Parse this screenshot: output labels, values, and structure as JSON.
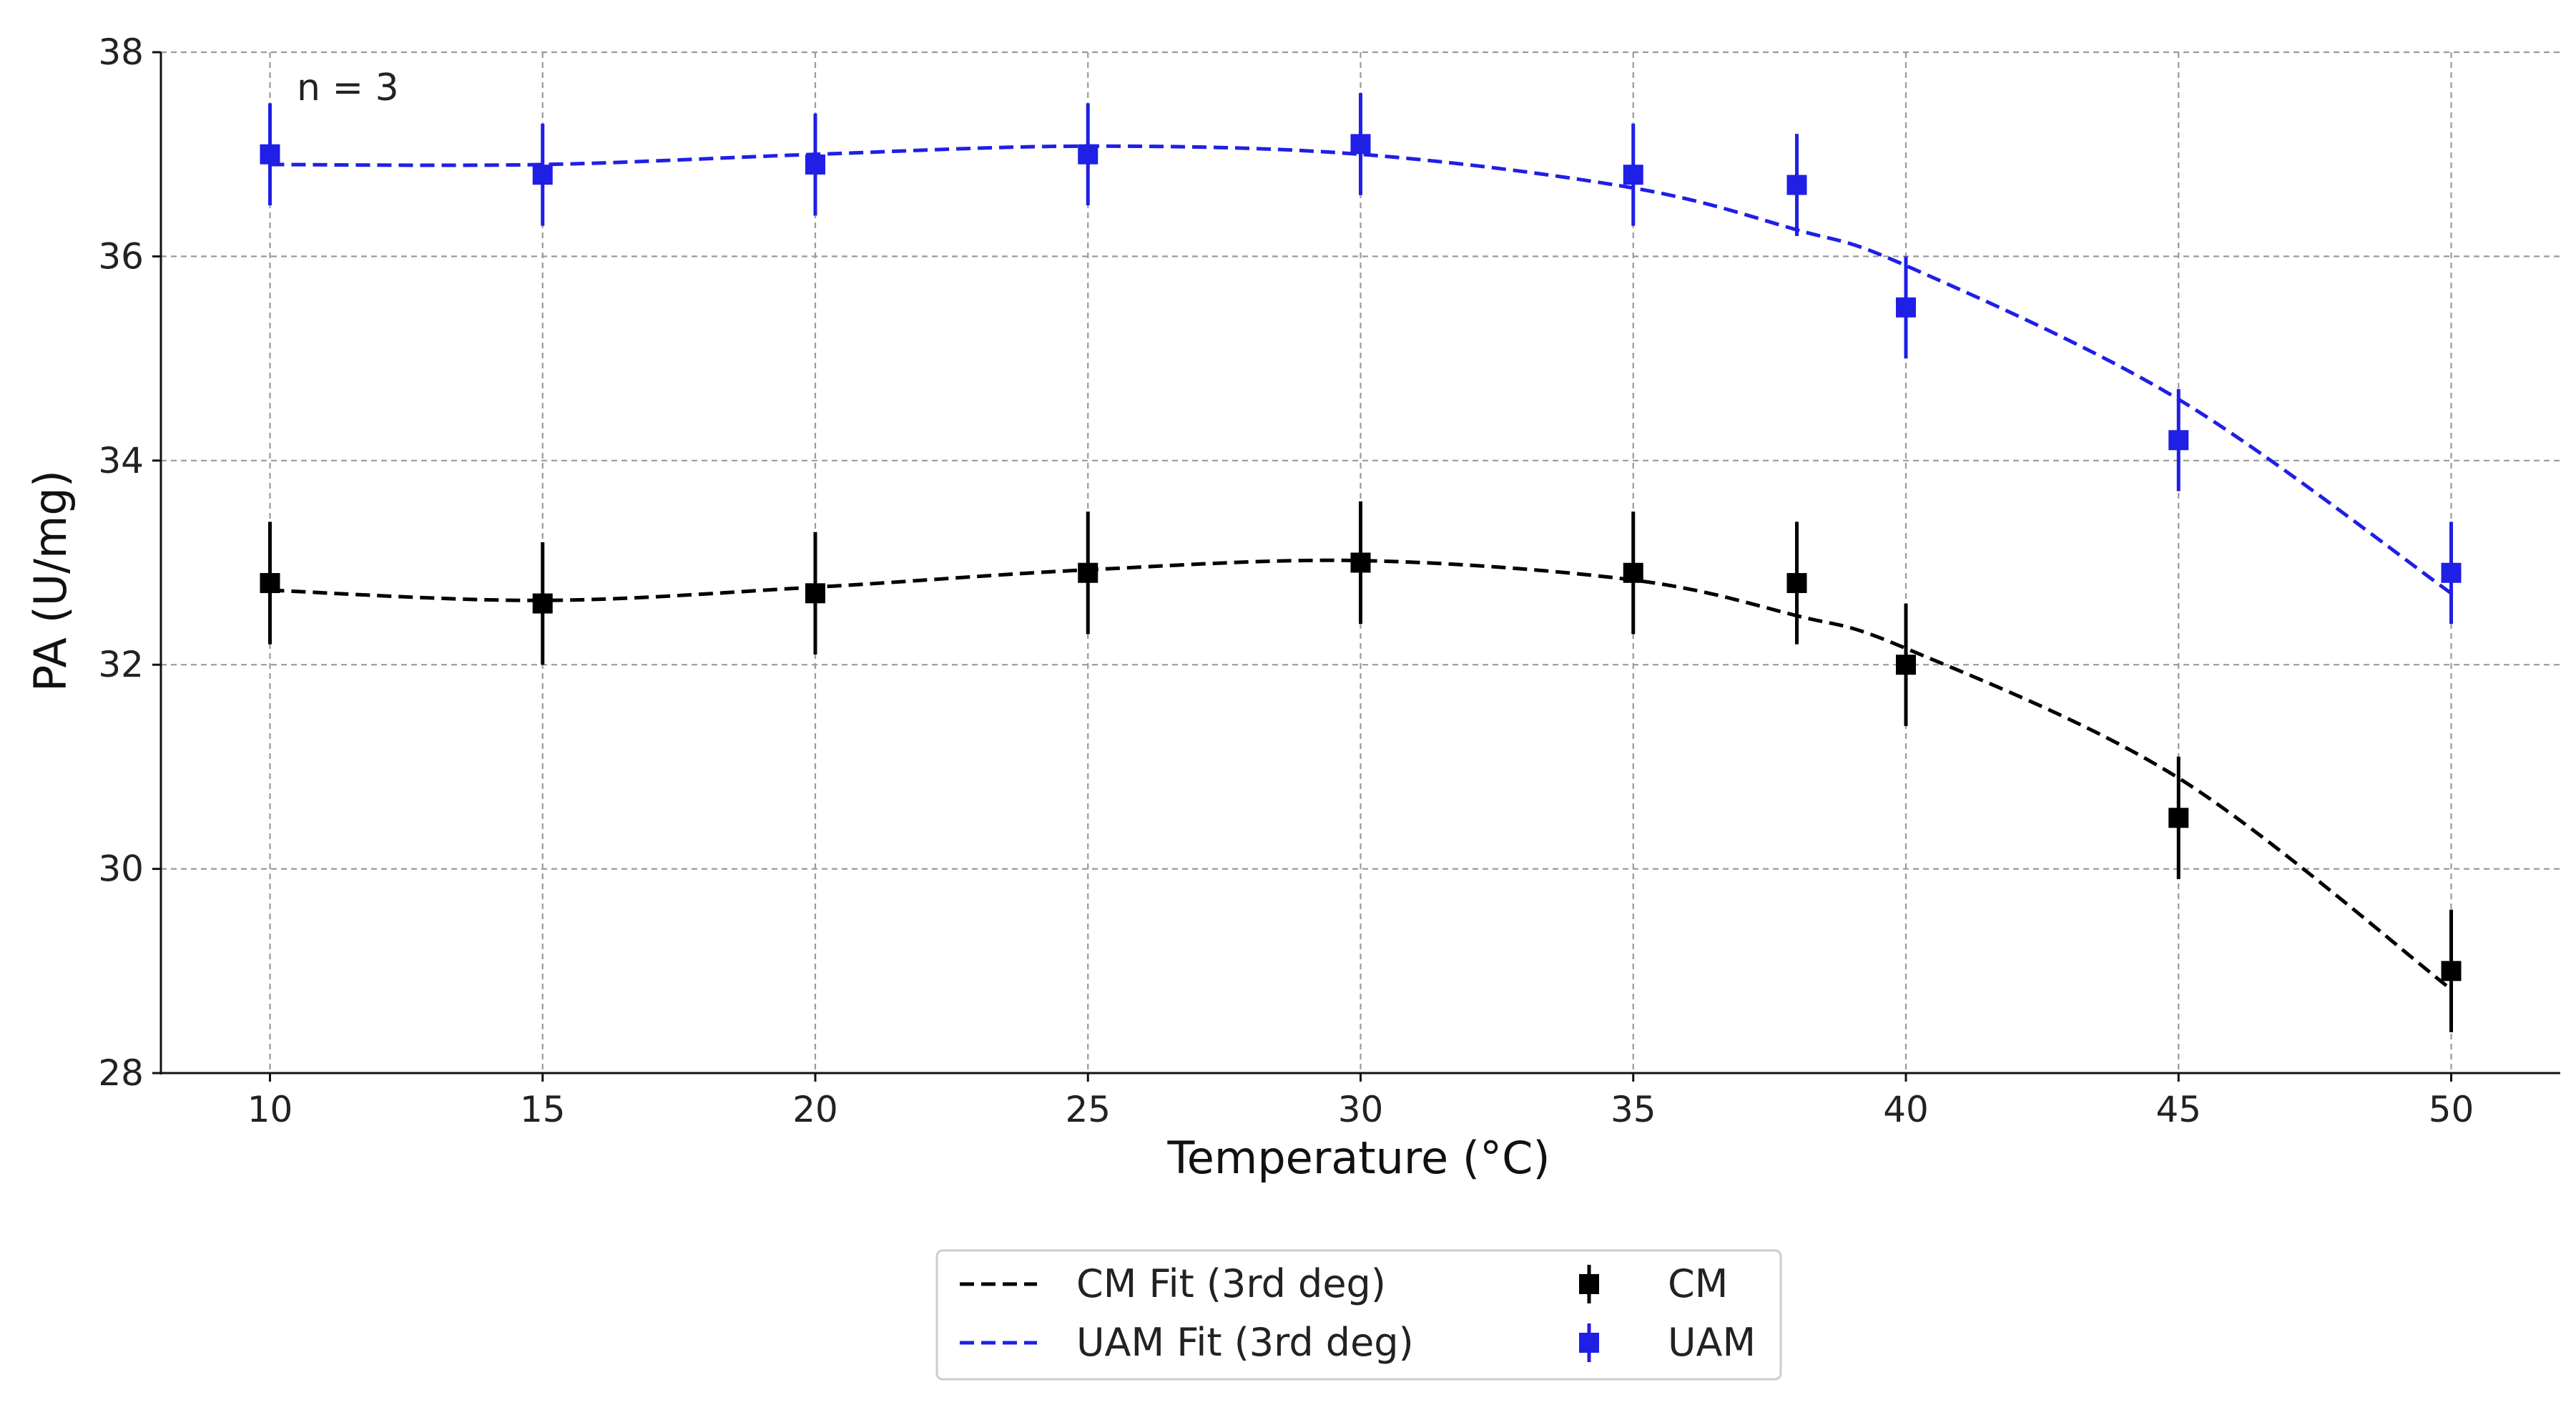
{
  "chart_data": {
    "type": "line",
    "title": "",
    "xlabel": "Temperature (°C)",
    "ylabel": "PA (U/mg)",
    "xlim": [
      8,
      52
    ],
    "ylim": [
      28,
      38
    ],
    "x_ticks": [
      10,
      15,
      20,
      25,
      30,
      35,
      40,
      45,
      50
    ],
    "y_ticks": [
      28,
      30,
      32,
      34,
      36,
      38
    ],
    "grid": true,
    "legend_position": "bottom-center",
    "annotation": "n = 3",
    "x": [
      10,
      15,
      20,
      25,
      30,
      35,
      38,
      40,
      45,
      50
    ],
    "series": [
      {
        "name": "CM",
        "color": "#000000",
        "values": [
          32.8,
          32.6,
          32.7,
          32.9,
          33.0,
          32.9,
          32.8,
          32.0,
          30.5,
          29.0
        ],
        "errors": [
          0.6,
          0.6,
          0.6,
          0.6,
          0.6,
          0.6,
          0.6,
          0.6,
          0.6,
          0.6
        ],
        "fit_name": "CM Fit (3rd deg)",
        "fit_values": [
          32.73,
          32.63,
          32.76,
          32.93,
          33.02,
          32.83,
          32.48,
          32.16,
          30.89,
          28.82
        ]
      },
      {
        "name": "UAM",
        "color": "#1f1fe6",
        "values": [
          37.0,
          36.8,
          36.9,
          37.0,
          37.1,
          36.8,
          36.7,
          35.5,
          34.2,
          32.9
        ],
        "errors": [
          0.5,
          0.5,
          0.5,
          0.5,
          0.5,
          0.5,
          0.5,
          0.5,
          0.5,
          0.5
        ],
        "fit_name": "UAM Fit (3rd deg)",
        "fit_values": [
          36.9,
          36.9,
          37.0,
          37.08,
          37.0,
          36.67,
          36.26,
          35.91,
          34.6,
          32.7
        ]
      }
    ]
  }
}
